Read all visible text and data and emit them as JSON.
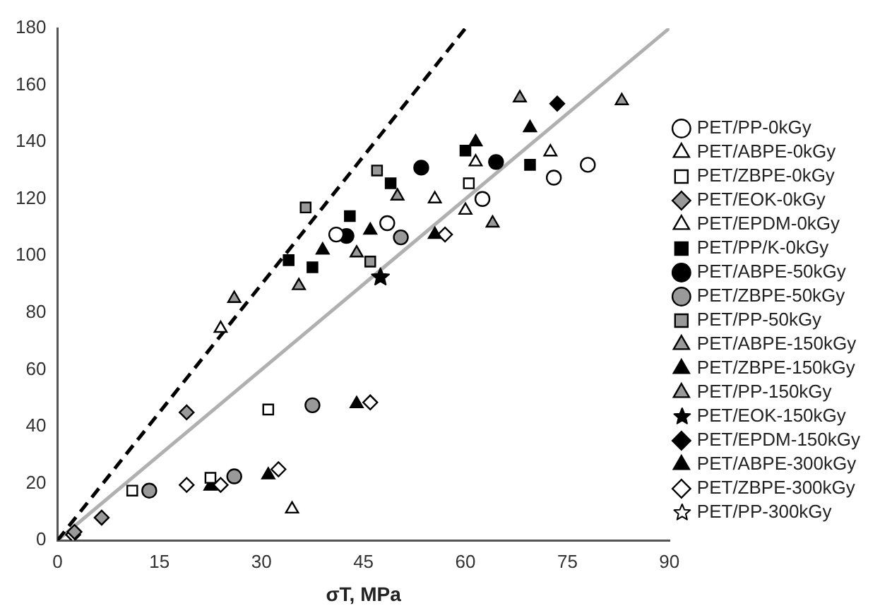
{
  "chart_data": {
    "type": "scatter",
    "xlabel": "σT, MPa",
    "xlim": [
      0,
      90
    ],
    "xticks": [
      0,
      15,
      30,
      45,
      60,
      75,
      90
    ],
    "ylim": [
      0,
      180
    ],
    "yticks": [
      0,
      20,
      40,
      60,
      80,
      100,
      120,
      140,
      160,
      180
    ],
    "grid": false,
    "legend": "right",
    "series": [
      {
        "name": "PET/PP-0kGy",
        "marker": "circle",
        "color": "#ffffff",
        "x": [
          78,
          73,
          62.5,
          48.5,
          41
        ],
        "values": [
          132,
          127.5,
          120,
          111.5,
          107.5
        ]
      },
      {
        "name": "PET/ABPE-0kGy",
        "marker": "triangle",
        "color": "#ffffff",
        "x": [
          72.5,
          61.5,
          60,
          24
        ],
        "values": [
          136.5,
          133,
          116,
          74.5
        ]
      },
      {
        "name": "PET/ZBPE-0kGy",
        "marker": "square",
        "color": "#ffffff",
        "x": [
          60.5,
          31,
          11,
          22.5
        ],
        "values": [
          125.5,
          46,
          17.5,
          22
        ]
      },
      {
        "name": "PET/EOK-0kGy",
        "marker": "diamond",
        "color": "#999999",
        "x": [
          19,
          6.5,
          2.5
        ],
        "values": [
          45,
          8,
          3
        ]
      },
      {
        "name": "PET/EPDM-0kGy",
        "marker": "triangle",
        "color": "#ffffff",
        "x": [
          34.5,
          55.5
        ],
        "values": [
          11,
          120
        ]
      },
      {
        "name": "PET/PP/K-0kGy",
        "marker": "square",
        "color": "#000000",
        "x": [
          60,
          69.5,
          49,
          43,
          34,
          37.5
        ],
        "values": [
          137,
          132,
          125.5,
          114,
          98.5,
          96
        ]
      },
      {
        "name": "PET/ABPE-50kGy",
        "marker": "circle",
        "color": "#000000",
        "x": [
          53.5,
          64.5,
          42.5
        ],
        "values": [
          131,
          133,
          107
        ]
      },
      {
        "name": "PET/ZBPE-50kGy",
        "marker": "circle",
        "color": "#999999",
        "x": [
          50.5,
          37.5,
          26,
          13.5
        ],
        "values": [
          106.5,
          47.5,
          22.5,
          17.5
        ]
      },
      {
        "name": "PET/PP-50kGy",
        "marker": "square",
        "color": "#999999",
        "x": [
          47,
          36.5,
          46
        ],
        "values": [
          130,
          117,
          98
        ]
      },
      {
        "name": "PET/ABPE-150kGy",
        "marker": "triangle",
        "color": "#999999",
        "x": [
          44,
          26
        ],
        "values": [
          101,
          85
        ]
      },
      {
        "name": "PET/ZBPE-150kGy",
        "marker": "triangle",
        "color": "#000000",
        "x": [
          44,
          31,
          22.5,
          55.5
        ],
        "values": [
          48,
          23,
          19,
          107.5
        ]
      },
      {
        "name": "PET/PP-150kGy",
        "marker": "triangle",
        "color": "#999999",
        "x": [
          68,
          83,
          50,
          64,
          35.5
        ],
        "values": [
          155.5,
          154.5,
          121,
          111.5,
          89.5
        ]
      },
      {
        "name": "PET/EOK-150kGy",
        "marker": "star",
        "color": "#000000",
        "x": [
          47.5
        ],
        "values": [
          92.5
        ]
      },
      {
        "name": "PET/EPDM-150kGy",
        "marker": "diamond",
        "color": "#000000",
        "x": [
          73.5
        ],
        "values": [
          153.5
        ]
      },
      {
        "name": "PET/ABPE-300kGy",
        "marker": "triangle",
        "color": "#000000",
        "x": [
          69.5,
          61.5,
          46,
          39
        ],
        "values": [
          145,
          140,
          109,
          102
        ]
      },
      {
        "name": "PET/ZBPE-300kGy",
        "marker": "diamond",
        "color": "#ffffff",
        "x": [
          46,
          32.5,
          24,
          19,
          2.3,
          57
        ],
        "values": [
          48.5,
          25,
          19.5,
          19.5,
          2,
          107.5
        ]
      },
      {
        "name": "PET/PP-300kGy",
        "marker": "star",
        "color": "#ffffff"
      },
      {
        "type": "line",
        "color": "#000000",
        "line_style": "dashed",
        "marker": "none",
        "x": [
          0,
          60
        ],
        "values": [
          0,
          180
        ]
      },
      {
        "type": "line",
        "color": "#b0b0b0",
        "line_style": "solid",
        "marker": "none",
        "x": [
          0,
          90
        ],
        "values": [
          0,
          180
        ]
      }
    ]
  }
}
